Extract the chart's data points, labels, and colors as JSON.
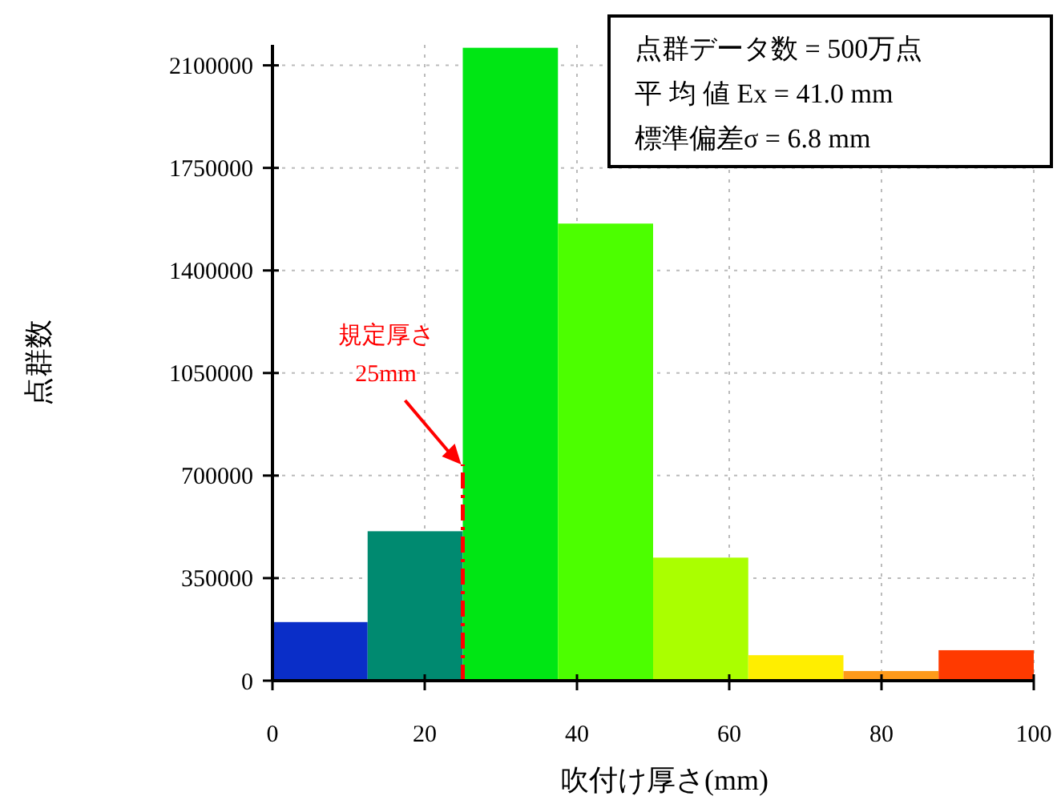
{
  "chart_data": {
    "type": "histogram",
    "xlabel": "吹付け厚さ(mm)",
    "ylabel": "点群数",
    "bins": [
      0,
      12.5,
      25,
      37.5,
      50,
      62.5,
      75,
      87.5,
      100
    ],
    "values": [
      200000,
      510000,
      2160000,
      1560000,
      420000,
      87000,
      33000,
      104000
    ],
    "colors": [
      "#0a2ec8",
      "#008a70",
      "#00e614",
      "#4cff00",
      "#aaff00",
      "#ffee00",
      "#ff9a1a",
      "#ff3a00"
    ],
    "xlim": [
      0,
      100
    ],
    "xticks": [
      0,
      20,
      40,
      60,
      80,
      100
    ],
    "ylim": [
      0,
      2170000
    ],
    "yticks": [
      0,
      350000,
      700000,
      1050000,
      1400000,
      1750000,
      2100000
    ],
    "grid": true,
    "ref_lines": [
      {
        "axis": "x",
        "value": 25,
        "color": "#ff0000",
        "line_style": "dashdot",
        "label": "規定厚さ\n25mm"
      }
    ],
    "annotations": [
      "点群データ数 = 500万点",
      "平 均 値 Ex = 41.0 mm",
      "標準偏差σ = 6.8 mm"
    ]
  }
}
